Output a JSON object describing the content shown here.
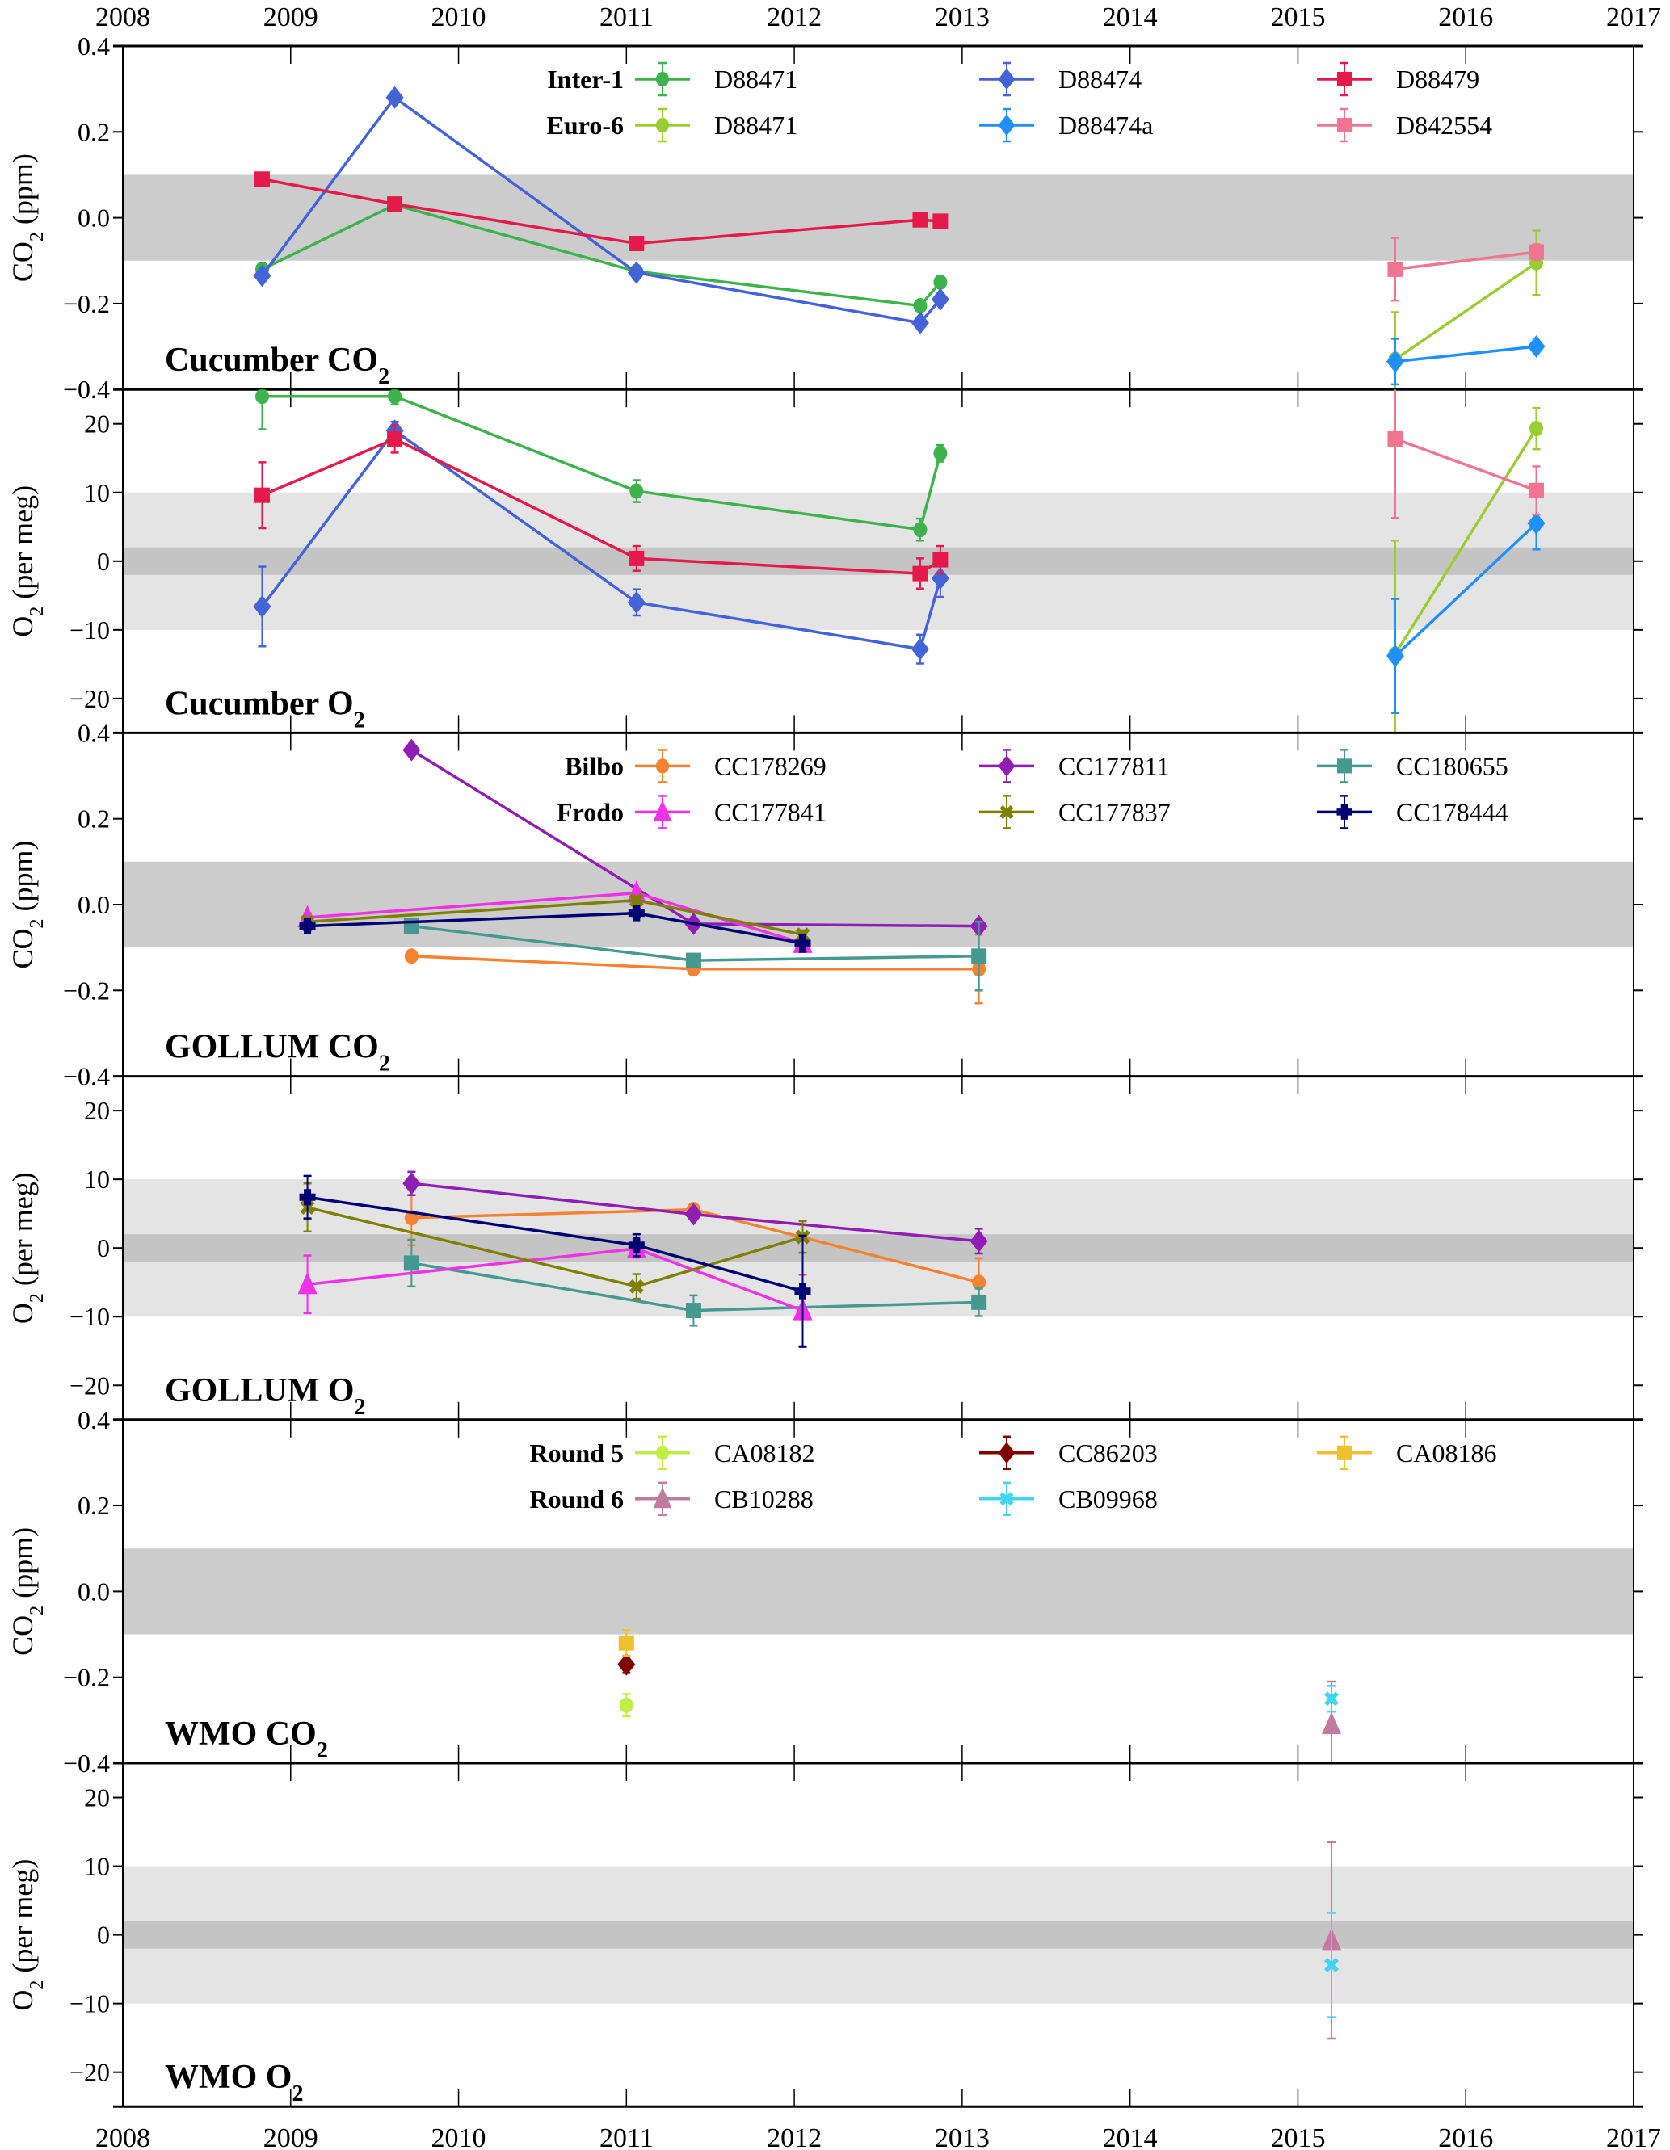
{
  "chart_data": {
    "type": "line",
    "x_axis": {
      "range": [
        2008,
        2017
      ],
      "ticks": [
        "2008",
        "2009",
        "2010",
        "2011",
        "2012",
        "2013",
        "2014",
        "2015",
        "2016",
        "2017"
      ]
    },
    "panels": [
      {
        "id": "cucumber-co2",
        "title": "Cucumber CO",
        "title_sub": "2",
        "ylabel": "CO",
        "ylabel_sub": "2",
        "ylabel_unit": " (ppm)",
        "ylim": [
          -0.4,
          0.4
        ],
        "yticks": [
          -0.4,
          -0.2,
          0.0,
          0.2,
          0.4
        ],
        "ytick_labels": [
          "−0.4",
          "−0.2",
          "0.0",
          "0.2",
          "0.4"
        ],
        "bands": [
          {
            "from": -0.1,
            "to": 0.1,
            "color": "#cccccc"
          }
        ],
        "legend": {
          "rows": [
            {
              "label": "Inter-1",
              "series_idx": [
                0,
                1,
                2
              ]
            },
            {
              "label": "Euro-6",
              "series_idx": [
                3,
                4,
                5
              ]
            }
          ]
        },
        "series": [
          {
            "name": "D88471",
            "group": "Inter-1",
            "color": "#3cb44b",
            "marker": "circle",
            "points": [
              [
                2008.83,
                -0.12,
                0
              ],
              [
                2009.62,
                0.03,
                0
              ],
              [
                2011.06,
                -0.125,
                0
              ],
              [
                2012.75,
                -0.205,
                0
              ],
              [
                2012.87,
                -0.15,
                0
              ]
            ]
          },
          {
            "name": "D88474",
            "group": "Inter-1",
            "color": "#4363d8",
            "marker": "diamond",
            "points": [
              [
                2008.83,
                -0.135,
                0
              ],
              [
                2009.62,
                0.28,
                0
              ],
              [
                2011.06,
                -0.128,
                0
              ],
              [
                2012.75,
                -0.245,
                0
              ],
              [
                2012.87,
                -0.19,
                0
              ]
            ]
          },
          {
            "name": "D88479",
            "group": "Inter-1",
            "color": "#e6194b",
            "marker": "square",
            "points": [
              [
                2008.83,
                0.09,
                0
              ],
              [
                2009.62,
                0.032,
                0
              ],
              [
                2011.06,
                -0.06,
                0
              ],
              [
                2012.75,
                -0.005,
                0
              ],
              [
                2012.87,
                -0.008,
                0
              ]
            ]
          },
          {
            "name": "D88471",
            "group": "Euro-6",
            "color": "#9acd32",
            "marker": "circle",
            "points": [
              [
                2015.58,
                -0.33,
                0.11
              ],
              [
                2016.42,
                -0.105,
                0.075
              ]
            ]
          },
          {
            "name": "D88474a",
            "group": "Euro-6",
            "color": "#1e90ff",
            "marker": "diamond",
            "points": [
              [
                2015.58,
                -0.335,
                0.053
              ],
              [
                2016.42,
                -0.3,
                0
              ]
            ]
          },
          {
            "name": "D842554",
            "group": "Euro-6",
            "color": "#f07590",
            "marker": "square",
            "points": [
              [
                2015.58,
                -0.12,
                0.073
              ],
              [
                2016.42,
                -0.08,
                0.018
              ]
            ]
          }
        ]
      },
      {
        "id": "cucumber-o2",
        "title": "Cucumber O",
        "title_sub": "2",
        "ylabel": "O",
        "ylabel_sub": "2",
        "ylabel_unit": " (per meg)",
        "ylim": [
          -25,
          25
        ],
        "yticks": [
          -20,
          -10,
          0,
          10,
          20
        ],
        "ytick_labels": [
          "−20",
          "−10",
          "0",
          "10",
          "20"
        ],
        "bands": [
          {
            "from": -10,
            "to": 10,
            "color": "#e4e4e4"
          },
          {
            "from": -2,
            "to": 2,
            "color": "#c4c4c4"
          }
        ],
        "series": [
          {
            "name": "D88471",
            "group": "Inter-1",
            "color": "#3cb44b",
            "marker": "circle",
            "points": [
              [
                2008.83,
                24,
                4.8
              ],
              [
                2009.62,
                24,
                1.2
              ],
              [
                2011.06,
                10.2,
                1.6
              ],
              [
                2012.75,
                4.6,
                1.6
              ],
              [
                2012.87,
                15.7,
                1.2
              ]
            ]
          },
          {
            "name": "D88474",
            "group": "Inter-1",
            "color": "#4363d8",
            "marker": "diamond",
            "points": [
              [
                2008.83,
                -6.6,
                5.8
              ],
              [
                2009.62,
                19.0,
                1.3
              ],
              [
                2011.06,
                -6.0,
                1.9
              ],
              [
                2012.75,
                -12.8,
                2.1
              ],
              [
                2012.87,
                -2.5,
                2.7
              ]
            ]
          },
          {
            "name": "D88479",
            "group": "Inter-1",
            "color": "#e6194b",
            "marker": "square",
            "points": [
              [
                2008.83,
                9.6,
                4.8
              ],
              [
                2009.62,
                17.8,
                2.0
              ],
              [
                2011.06,
                0.4,
                1.8
              ],
              [
                2012.75,
                -1.8,
                2.2
              ],
              [
                2012.87,
                0.2,
                2.0
              ]
            ]
          },
          {
            "name": "D88471",
            "group": "Euro-6",
            "color": "#9acd32",
            "marker": "circle",
            "points": [
              [
                2015.58,
                -13.5,
                16.5
              ],
              [
                2016.42,
                19.3,
                3.0
              ]
            ]
          },
          {
            "name": "D88474a",
            "group": "Euro-6",
            "color": "#1e90ff",
            "marker": "diamond",
            "points": [
              [
                2015.58,
                -13.8,
                8.3
              ],
              [
                2016.42,
                5.5,
                3.8
              ]
            ]
          },
          {
            "name": "D842554",
            "group": "Euro-6",
            "color": "#f07590",
            "marker": "square",
            "points": [
              [
                2015.58,
                17.8,
                11.5
              ],
              [
                2016.42,
                10.3,
                3.5
              ]
            ]
          }
        ]
      },
      {
        "id": "gollum-co2",
        "title": "GOLLUM CO",
        "title_sub": "2",
        "ylabel": "CO",
        "ylabel_sub": "2",
        "ylabel_unit": " (ppm)",
        "ylim": [
          -0.4,
          0.4
        ],
        "yticks": [
          -0.4,
          -0.2,
          0.0,
          0.2,
          0.4
        ],
        "ytick_labels": [
          "−0.4",
          "−0.2",
          "0.0",
          "0.2",
          "0.4"
        ],
        "bands": [
          {
            "from": -0.1,
            "to": 0.1,
            "color": "#cccccc"
          }
        ],
        "legend": {
          "rows": [
            {
              "label": "Bilbo",
              "series_idx": [
                0,
                1,
                2
              ]
            },
            {
              "label": "Frodo",
              "series_idx": [
                3,
                4,
                5
              ]
            }
          ]
        },
        "series": [
          {
            "name": "CC178269",
            "group": "Bilbo",
            "color": "#f58231",
            "marker": "circle",
            "points": [
              [
                2009.72,
                -0.12,
                0
              ],
              [
                2011.4,
                -0.15,
                0.01
              ],
              [
                2013.1,
                -0.15,
                0.08
              ]
            ]
          },
          {
            "name": "CC177811",
            "group": "Bilbo",
            "color": "#911eb4",
            "marker": "diamond",
            "points": [
              [
                2009.72,
                0.36,
                0
              ],
              [
                2011.4,
                -0.045,
                0
              ],
              [
                2013.1,
                -0.05,
                0
              ]
            ]
          },
          {
            "name": "CC180655",
            "group": "Bilbo",
            "color": "#469990",
            "marker": "square",
            "points": [
              [
                2009.72,
                -0.05,
                0
              ],
              [
                2011.4,
                -0.13,
                0.01
              ],
              [
                2013.1,
                -0.12,
                0.08
              ]
            ]
          },
          {
            "name": "CC177841",
            "group": "Frodo",
            "color": "#f032e6",
            "marker": "triangle",
            "points": [
              [
                2009.1,
                -0.03,
                0.01
              ],
              [
                2011.06,
                0.027,
                0.01
              ],
              [
                2012.05,
                -0.09,
                0.01
              ]
            ]
          },
          {
            "name": "CC177837",
            "group": "Frodo",
            "color": "#808000",
            "marker": "x",
            "points": [
              [
                2009.1,
                -0.04,
                0.01
              ],
              [
                2011.06,
                0.01,
                0.01
              ],
              [
                2012.05,
                -0.07,
                0.01
              ]
            ]
          },
          {
            "name": "CC178444",
            "group": "Frodo",
            "color": "#000075",
            "marker": "plus",
            "points": [
              [
                2009.1,
                -0.05,
                0.01
              ],
              [
                2011.06,
                -0.02,
                0.01
              ],
              [
                2012.05,
                -0.09,
                0.02
              ]
            ]
          }
        ]
      },
      {
        "id": "gollum-o2",
        "title": "GOLLUM O",
        "title_sub": "2",
        "ylabel": "O",
        "ylabel_sub": "2",
        "ylabel_unit": " (per meg)",
        "ylim": [
          -25,
          25
        ],
        "yticks": [
          -20,
          -10,
          0,
          10,
          20
        ],
        "ytick_labels": [
          "−20",
          "−10",
          "0",
          "10",
          "20"
        ],
        "bands": [
          {
            "from": -10,
            "to": 10,
            "color": "#e4e4e4"
          },
          {
            "from": -2,
            "to": 2,
            "color": "#c4c4c4"
          }
        ],
        "series": [
          {
            "name": "CC178269",
            "group": "Bilbo",
            "color": "#f58231",
            "marker": "circle",
            "points": [
              [
                2009.72,
                4.4,
                4.0
              ],
              [
                2011.4,
                5.6,
                0.5
              ],
              [
                2013.1,
                -5.0,
                3.5
              ]
            ]
          },
          {
            "name": "CC177811",
            "group": "Bilbo",
            "color": "#911eb4",
            "marker": "diamond",
            "points": [
              [
                2009.72,
                9.4,
                1.7
              ],
              [
                2011.4,
                4.9,
                0.5
              ],
              [
                2013.1,
                1.0,
                1.8
              ]
            ]
          },
          {
            "name": "CC180655",
            "group": "Bilbo",
            "color": "#469990",
            "marker": "square",
            "points": [
              [
                2009.72,
                -2.2,
                3.4
              ],
              [
                2011.4,
                -9.1,
                2.2
              ],
              [
                2013.1,
                -7.9,
                2.0
              ]
            ]
          },
          {
            "name": "CC177841",
            "group": "Frodo",
            "color": "#f032e6",
            "marker": "triangle",
            "points": [
              [
                2009.1,
                -5.3,
                4.2
              ],
              [
                2011.06,
                -0.1,
                1.3
              ],
              [
                2012.05,
                -9.1,
                5.2
              ]
            ]
          },
          {
            "name": "CC177837",
            "group": "Frodo",
            "color": "#808000",
            "marker": "x",
            "points": [
              [
                2009.1,
                5.9,
                3.5
              ],
              [
                2011.06,
                -5.6,
                1.8
              ],
              [
                2012.05,
                1.6,
                2.3
              ]
            ]
          },
          {
            "name": "CC178444",
            "group": "Frodo",
            "color": "#000075",
            "marker": "plus",
            "points": [
              [
                2009.1,
                7.4,
                3.1
              ],
              [
                2011.06,
                0.4,
                1.6
              ],
              [
                2012.05,
                -6.3,
                8.1
              ]
            ]
          }
        ]
      },
      {
        "id": "wmo-co2",
        "title": "WMO CO",
        "title_sub": "2",
        "ylabel": "CO",
        "ylabel_sub": "2",
        "ylabel_unit": " (ppm)",
        "ylim": [
          -0.4,
          0.4
        ],
        "yticks": [
          -0.4,
          -0.2,
          0.0,
          0.2,
          0.4
        ],
        "ytick_labels": [
          "−0.4",
          "−0.2",
          "0.0",
          "0.2",
          "0.4"
        ],
        "bands": [
          {
            "from": -0.1,
            "to": 0.1,
            "color": "#cccccc"
          }
        ],
        "legend": {
          "rows": [
            {
              "label": "Round 5",
              "series_idx": [
                0,
                1,
                2
              ]
            },
            {
              "label": "Round 6",
              "series_idx": [
                3,
                4
              ]
            }
          ]
        },
        "series": [
          {
            "name": "CA08182",
            "group": "Round 5",
            "color": "#bfef45",
            "marker": "circle",
            "points": [
              [
                2011.0,
                -0.265,
                0.026
              ]
            ]
          },
          {
            "name": "CC86203",
            "group": "Round 5",
            "color": "#800000",
            "marker": "diamond",
            "points": [
              [
                2011.0,
                -0.17,
                0.02
              ]
            ]
          },
          {
            "name": "CA08186",
            "group": "Round 5",
            "color": "#f0c030",
            "marker": "square",
            "points": [
              [
                2011.0,
                -0.12,
                0.03
              ]
            ]
          },
          {
            "name": "CB10288",
            "group": "Round 6",
            "color": "#c17aa0",
            "marker": "triangle",
            "points": [
              [
                2015.2,
                -0.31,
                0.1
              ]
            ]
          },
          {
            "name": "CB09968",
            "group": "Round 6",
            "color": "#42d4f4",
            "marker": "x",
            "points": [
              [
                2015.2,
                -0.25,
                0.03
              ]
            ]
          }
        ]
      },
      {
        "id": "wmo-o2",
        "title": "WMO O",
        "title_sub": "2",
        "ylabel": "O",
        "ylabel_sub": "2",
        "ylabel_unit": " (per meg)",
        "ylim": [
          -25,
          25
        ],
        "yticks": [
          -20,
          -10,
          0,
          10,
          20
        ],
        "ytick_labels": [
          "−20",
          "−10",
          "0",
          "10",
          "20"
        ],
        "bands": [
          {
            "from": -10,
            "to": 10,
            "color": "#e4e4e4"
          },
          {
            "from": -2,
            "to": 2,
            "color": "#c4c4c4"
          }
        ],
        "series": [
          {
            "name": "CB10288",
            "group": "Round 6",
            "color": "#c17aa0",
            "marker": "triangle",
            "points": [
              [
                2015.2,
                -0.8,
                14.3
              ]
            ]
          },
          {
            "name": "CB09968",
            "group": "Round 6",
            "color": "#42d4f4",
            "marker": "x",
            "points": [
              [
                2015.2,
                -4.4,
                7.6
              ]
            ]
          }
        ]
      }
    ]
  }
}
